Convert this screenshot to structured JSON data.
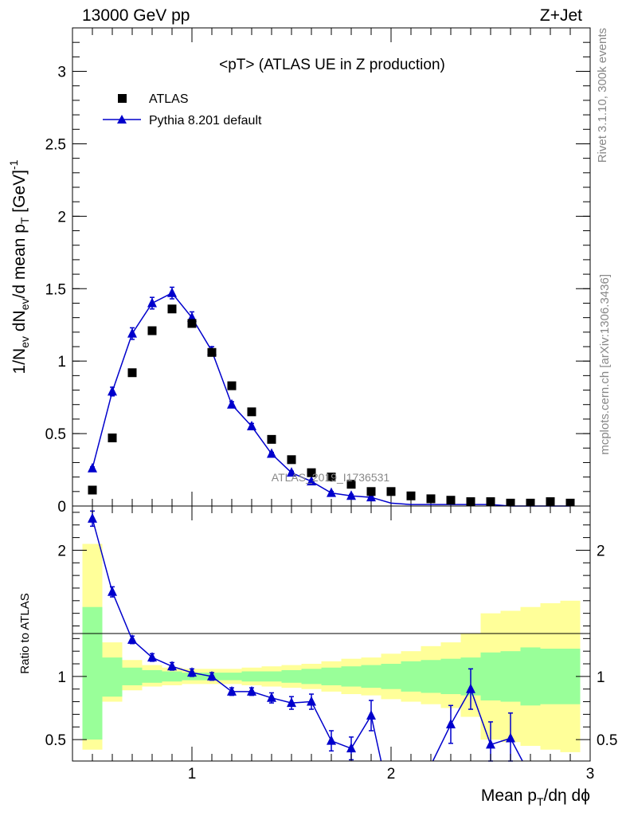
{
  "header": {
    "energy": "13000 GeV pp",
    "process": "Z+Jet"
  },
  "side_labels": {
    "rivet": "Rivet 3.1.10,  300k events",
    "mcplots": "mcplots.cern.ch [arXiv:1306.3436]"
  },
  "chart_data": {
    "type": "scatter",
    "title": "<pT> (ATLAS UE in Z production)",
    "watermark": "ATLAS_2019_I1736531",
    "xlim": [
      0.4,
      3.0
    ],
    "x_ticks": [
      1,
      2,
      3
    ],
    "legend_placement": "top-left",
    "colors": {
      "data": "#000000",
      "mc": "#0000cc",
      "band_inner": "#99ff99",
      "band_outer": "#ffff99"
    },
    "main": {
      "ylabel": "1/N_ev dN_ev/d mean p_T [GeV]^-1",
      "ylim": [
        0,
        3.3
      ],
      "y_ticks": [
        0,
        0.5,
        1,
        1.5,
        2,
        2.5,
        3
      ],
      "y_tick_labels": [
        "0",
        "0.5",
        "1",
        "1.5",
        "2",
        "2.5",
        "3"
      ],
      "series": [
        {
          "name": "ATLAS",
          "marker": "square",
          "x": [
            0.5,
            0.6,
            0.7,
            0.8,
            0.9,
            1.0,
            1.1,
            1.2,
            1.3,
            1.4,
            1.5,
            1.6,
            1.7,
            1.8,
            1.9,
            2.0,
            2.1,
            2.2,
            2.3,
            2.4,
            2.5,
            2.6,
            2.7,
            2.8,
            2.9
          ],
          "y": [
            0.11,
            0.47,
            0.92,
            1.21,
            1.36,
            1.26,
            1.06,
            0.83,
            0.65,
            0.46,
            0.32,
            0.23,
            0.2,
            0.15,
            0.1,
            0.1,
            0.07,
            0.05,
            0.04,
            0.03,
            0.03,
            0.02,
            0.02,
            0.03,
            0.02
          ]
        },
        {
          "name": "Pythia 8.201 default",
          "marker": "triangle",
          "x": [
            0.5,
            0.6,
            0.7,
            0.8,
            0.9,
            1.0,
            1.1,
            1.2,
            1.3,
            1.4,
            1.5,
            1.6,
            1.7,
            1.8,
            1.9,
            2.0,
            2.1,
            2.2,
            2.3,
            2.4,
            2.5,
            2.6,
            2.7,
            2.8,
            2.9
          ],
          "y": [
            0.26,
            0.79,
            1.19,
            1.4,
            1.47,
            1.3,
            1.07,
            0.7,
            0.55,
            0.36,
            0.23,
            0.17,
            0.09,
            0.07,
            0.06,
            0.02,
            0.01,
            0.01,
            0.01,
            0.01,
            0.01,
            0.0,
            0.0,
            0.0,
            0.0
          ],
          "yerr": [
            0.01,
            0.03,
            0.04,
            0.04,
            0.04,
            0.04,
            0.03,
            0.02,
            0.02,
            0.01,
            0.01,
            0.01,
            0.01,
            0.01,
            0.01,
            0.0,
            0.0,
            0.0,
            0.0,
            0.0,
            0.0,
            0.0,
            0.0,
            0.0,
            0.0
          ]
        }
      ]
    },
    "ratio": {
      "ylabel": "Ratio to ATLAS",
      "ylim": [
        0.33,
        2.35
      ],
      "y_ticks": [
        0.5,
        1,
        2
      ],
      "y_tick_labels": [
        "0.5",
        "1",
        "2"
      ],
      "xlabel": "Mean p_T/dη dϕ",
      "bin_edges": [
        0.45,
        0.55,
        0.65,
        0.75,
        0.85,
        0.95,
        1.05,
        1.15,
        1.25,
        1.35,
        1.45,
        1.55,
        1.65,
        1.75,
        1.85,
        1.95,
        2.05,
        2.15,
        2.25,
        2.35,
        2.45,
        2.55,
        2.65,
        2.75,
        2.85,
        2.95
      ],
      "band_inner": [
        [
          0.5,
          1.55
        ],
        [
          0.84,
          1.15
        ],
        [
          0.93,
          1.07
        ],
        [
          0.95,
          1.05
        ],
        [
          0.96,
          1.04
        ],
        [
          0.97,
          1.03
        ],
        [
          0.97,
          1.03
        ],
        [
          0.97,
          1.03
        ],
        [
          0.96,
          1.04
        ],
        [
          0.96,
          1.04
        ],
        [
          0.95,
          1.05
        ],
        [
          0.94,
          1.06
        ],
        [
          0.93,
          1.07
        ],
        [
          0.92,
          1.08
        ],
        [
          0.91,
          1.09
        ],
        [
          0.9,
          1.1
        ],
        [
          0.88,
          1.12
        ],
        [
          0.87,
          1.13
        ],
        [
          0.86,
          1.14
        ],
        [
          0.85,
          1.15
        ],
        [
          0.81,
          1.19
        ],
        [
          0.8,
          1.2
        ],
        [
          0.77,
          1.23
        ],
        [
          0.78,
          1.22
        ],
        [
          0.78,
          1.22
        ]
      ],
      "band_outer": [
        [
          0.42,
          2.05
        ],
        [
          0.8,
          1.27
        ],
        [
          0.89,
          1.13
        ],
        [
          0.92,
          1.09
        ],
        [
          0.93,
          1.07
        ],
        [
          0.94,
          1.06
        ],
        [
          0.94,
          1.06
        ],
        [
          0.94,
          1.06
        ],
        [
          0.93,
          1.07
        ],
        [
          0.92,
          1.08
        ],
        [
          0.91,
          1.09
        ],
        [
          0.9,
          1.1
        ],
        [
          0.88,
          1.12
        ],
        [
          0.86,
          1.14
        ],
        [
          0.85,
          1.15
        ],
        [
          0.82,
          1.18
        ],
        [
          0.8,
          1.2
        ],
        [
          0.78,
          1.24
        ],
        [
          0.75,
          1.27
        ],
        [
          0.68,
          1.34
        ],
        [
          0.5,
          1.5
        ],
        [
          0.48,
          1.52
        ],
        [
          0.45,
          1.55
        ],
        [
          0.42,
          1.58
        ],
        [
          0.4,
          1.6
        ]
      ],
      "mc_x": [
        0.5,
        0.6,
        0.7,
        0.8,
        0.9,
        1.0,
        1.1,
        1.2,
        1.3,
        1.4,
        1.5,
        1.6,
        1.7,
        1.8,
        1.9,
        2.3,
        2.4,
        2.5,
        2.6
      ],
      "mc_y": [
        2.25,
        1.67,
        1.29,
        1.15,
        1.08,
        1.03,
        1.0,
        0.88,
        0.88,
        0.83,
        0.79,
        0.8,
        0.49,
        0.43,
        0.69,
        0.62,
        0.9,
        0.46,
        0.51
      ],
      "mc_yerr": [
        0.06,
        0.04,
        0.03,
        0.03,
        0.03,
        0.03,
        0.03,
        0.03,
        0.03,
        0.04,
        0.05,
        0.06,
        0.08,
        0.09,
        0.12,
        0.15,
        0.16,
        0.18,
        0.2
      ],
      "mc_segments": [
        [
          0,
          14
        ],
        [
          15,
          18
        ]
      ],
      "mc_exits": [
        [
          14,
          1.95,
          0.33
        ],
        [
          15,
          2.21,
          0.33
        ],
        [
          18,
          2.66,
          0.33
        ]
      ]
    }
  }
}
